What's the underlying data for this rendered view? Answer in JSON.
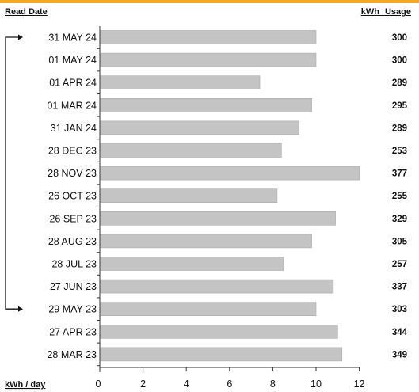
{
  "headers": {
    "read_date": "Read Date",
    "kwh_usage": "kWh Usage"
  },
  "colors": {
    "accent": "#f5a623",
    "bar": "#c4c4c4",
    "bar_stroke": "#a9a9a9"
  },
  "chart_data": {
    "type": "bar",
    "orientation": "horizontal",
    "categories": [
      "31 MAY 24",
      "01 MAY 24",
      "01 APR 24",
      "01 MAR 24",
      "31 JAN 24",
      "28 DEC 23",
      "28 NOV 23",
      "26 OCT 23",
      "26 SEP 23",
      "28 AUG 23",
      "28 JUL 23",
      "27 JUN 23",
      "29 MAY 23",
      "27 APR 23",
      "28 MAR 23"
    ],
    "values": [
      10.0,
      10.0,
      7.4,
      9.8,
      9.2,
      8.4,
      12.0,
      8.2,
      10.9,
      9.8,
      8.5,
      10.8,
      10.0,
      11.0,
      11.2
    ],
    "labels": [
      "300",
      "300",
      "289",
      "295",
      "289",
      "253",
      "377",
      "255",
      "329",
      "305",
      "257",
      "337",
      "303",
      "344",
      "349"
    ],
    "xlabel": "kWh / day",
    "xticks": [
      0,
      2,
      4,
      6,
      8,
      10,
      12
    ],
    "xlim": [
      0,
      12
    ],
    "comparison_bracket": [
      "31 MAY 24",
      "29 MAY 23"
    ]
  }
}
